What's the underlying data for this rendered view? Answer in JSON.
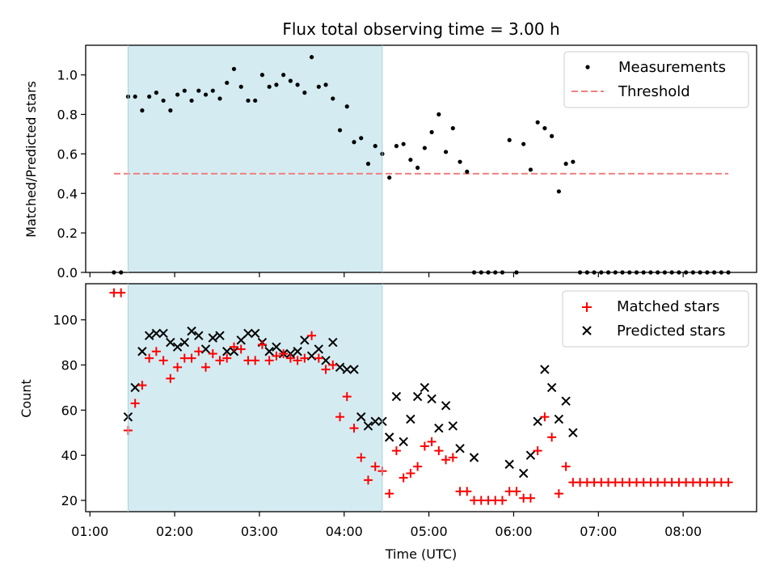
{
  "chart_data": [
    {
      "type": "scatter",
      "title": "Flux total observing time = 3.00 h",
      "xlabel": "",
      "ylabel": "Matched/Predicted stars",
      "ylim": [
        0,
        1.15
      ],
      "yticks": [
        "0.0",
        "0.2",
        "0.4",
        "0.6",
        "0.8",
        "1.0"
      ],
      "ytick_values": [
        0,
        0.2,
        0.4,
        0.6,
        0.8,
        1.0
      ],
      "shaded_span": [
        "01:27",
        "04:27"
      ],
      "shaded_color": "#d4ebf1",
      "legend_position": "top-right",
      "series": [
        {
          "name": "Measurements",
          "marker": "dot",
          "color": "#000000",
          "x": [
            "01:17",
            "01:22",
            "01:27",
            "01:32",
            "01:37",
            "01:42",
            "01:47",
            "01:52",
            "01:57",
            "02:02",
            "02:07",
            "02:12",
            "02:17",
            "02:22",
            "02:27",
            "02:32",
            "02:37",
            "02:42",
            "02:47",
            "02:52",
            "02:57",
            "03:02",
            "03:07",
            "03:12",
            "03:17",
            "03:22",
            "03:27",
            "03:32",
            "03:37",
            "03:42",
            "03:47",
            "03:52",
            "03:57",
            "04:02",
            "04:07",
            "04:12",
            "04:17",
            "04:22",
            "04:27",
            "04:32",
            "04:37",
            "04:42",
            "04:47",
            "04:52",
            "04:57",
            "05:02",
            "05:07",
            "05:12",
            "05:17",
            "05:22",
            "05:27",
            "05:32",
            "05:37",
            "05:42",
            "05:47",
            "05:52",
            "05:57",
            "06:02",
            "06:07",
            "06:12",
            "06:17",
            "06:22",
            "06:27",
            "06:32",
            "06:37",
            "06:42",
            "06:47",
            "06:52",
            "06:57",
            "07:02",
            "07:07",
            "07:12",
            "07:17",
            "07:22",
            "07:27",
            "07:32",
            "07:37",
            "07:42",
            "07:47",
            "07:52",
            "07:57",
            "08:02",
            "08:07",
            "08:12",
            "08:17",
            "08:22",
            "08:27",
            "08:32"
          ],
          "y": [
            0,
            0,
            0.89,
            0.89,
            0.82,
            0.89,
            0.91,
            0.87,
            0.82,
            0.9,
            0.92,
            0.87,
            0.92,
            0.9,
            0.92,
            0.88,
            0.96,
            1.03,
            0.94,
            0.87,
            0.87,
            1.0,
            0.94,
            0.95,
            1.0,
            0.97,
            0.95,
            0.91,
            1.09,
            0.94,
            0.95,
            0.88,
            0.72,
            0.84,
            0.66,
            0.68,
            0.55,
            0.64,
            0.6,
            0.48,
            0.64,
            0.65,
            0.57,
            0.53,
            0.63,
            0.71,
            0.8,
            0.61,
            0.73,
            0.56,
            0.51,
            0,
            0,
            0,
            0,
            0,
            0.67,
            0,
            0.65,
            0.52,
            0.76,
            0.73,
            0.69,
            0.41,
            0.55,
            0.56,
            0,
            0,
            0,
            0,
            0,
            0,
            0,
            0,
            0,
            0,
            0,
            0,
            0,
            0,
            0,
            0,
            0,
            0,
            0,
            0,
            0,
            0
          ]
        },
        {
          "name": "Threshold",
          "marker": "dashed-line",
          "color": "#f08080",
          "x": [
            "01:17",
            "08:32"
          ],
          "y": [
            0.5,
            0.5
          ]
        }
      ]
    },
    {
      "type": "scatter",
      "title": "",
      "xlabel": "Time (UTC)",
      "ylabel": "Count",
      "ylim": [
        15,
        116
      ],
      "yticks": [
        "20",
        "40",
        "60",
        "80",
        "100"
      ],
      "ytick_values": [
        20,
        40,
        60,
        80,
        100
      ],
      "xticks": [
        "01:00",
        "02:00",
        "03:00",
        "04:00",
        "05:00",
        "06:00",
        "07:00",
        "08:00"
      ],
      "xlim": [
        "00:57",
        "08:52"
      ],
      "shaded_span": [
        "01:27",
        "04:27"
      ],
      "shaded_color": "#d4ebf1",
      "legend_position": "top-right",
      "series": [
        {
          "name": "Matched stars",
          "marker": "plus",
          "color": "#ff0000",
          "x": [
            "01:17",
            "01:22",
            "01:27",
            "01:32",
            "01:37",
            "01:42",
            "01:47",
            "01:52",
            "01:57",
            "02:02",
            "02:07",
            "02:12",
            "02:17",
            "02:22",
            "02:27",
            "02:32",
            "02:37",
            "02:42",
            "02:47",
            "02:52",
            "02:57",
            "03:02",
            "03:07",
            "03:12",
            "03:17",
            "03:22",
            "03:27",
            "03:32",
            "03:37",
            "03:42",
            "03:47",
            "03:52",
            "03:57",
            "04:02",
            "04:07",
            "04:12",
            "04:17",
            "04:22",
            "04:27",
            "04:32",
            "04:37",
            "04:42",
            "04:47",
            "04:52",
            "04:57",
            "05:02",
            "05:07",
            "05:12",
            "05:17",
            "05:22",
            "05:27",
            "05:32",
            "05:37",
            "05:42",
            "05:47",
            "05:52",
            "05:57",
            "06:02",
            "06:07",
            "06:12",
            "06:17",
            "06:22",
            "06:27",
            "06:32",
            "06:37",
            "06:42",
            "06:47",
            "06:52",
            "06:57",
            "07:02",
            "07:07",
            "07:12",
            "07:17",
            "07:22",
            "07:27",
            "07:32",
            "07:37",
            "07:42",
            "07:47",
            "07:52",
            "07:57",
            "08:02",
            "08:07",
            "08:12",
            "08:17",
            "08:22",
            "08:27",
            "08:32"
          ],
          "y": [
            112,
            112,
            51,
            63,
            71,
            83,
            86,
            82,
            74,
            79,
            83,
            83,
            86,
            79,
            85,
            82,
            83,
            88,
            87,
            82,
            82,
            89,
            82,
            84,
            85,
            83,
            82,
            83,
            93,
            83,
            78,
            80,
            57,
            66,
            52,
            39,
            29,
            35,
            33,
            23,
            42,
            30,
            32,
            35,
            44,
            46,
            42,
            38,
            39,
            24,
            24,
            20,
            20,
            20,
            20,
            20,
            24,
            24,
            21,
            21,
            42,
            57,
            48,
            23,
            35,
            28,
            28,
            28,
            28,
            28,
            28,
            28,
            28,
            28,
            28,
            28,
            28,
            28,
            28,
            28,
            28,
            28,
            28,
            28,
            28,
            28,
            28,
            28
          ]
        },
        {
          "name": "Predicted stars",
          "marker": "x",
          "color": "#000000",
          "x": [
            "01:27",
            "01:32",
            "01:37",
            "01:42",
            "01:47",
            "01:52",
            "01:57",
            "02:02",
            "02:07",
            "02:12",
            "02:17",
            "02:22",
            "02:27",
            "02:32",
            "02:37",
            "02:42",
            "02:47",
            "02:52",
            "02:57",
            "03:02",
            "03:07",
            "03:12",
            "03:17",
            "03:22",
            "03:27",
            "03:32",
            "03:37",
            "03:42",
            "03:47",
            "03:52",
            "03:57",
            "04:02",
            "04:07",
            "04:12",
            "04:17",
            "04:22",
            "04:27",
            "04:32",
            "04:37",
            "04:42",
            "04:47",
            "04:52",
            "04:57",
            "05:02",
            "05:07",
            "05:12",
            "05:17",
            "05:22",
            "05:32",
            "05:57",
            "06:07",
            "06:12",
            "06:17",
            "06:22",
            "06:27",
            "06:32",
            "06:37",
            "06:42"
          ],
          "y": [
            57,
            70,
            86,
            93,
            94,
            94,
            90,
            88,
            90,
            95,
            93,
            87,
            92,
            93,
            86,
            86,
            91,
            94,
            94,
            90,
            86,
            88,
            85,
            85,
            86,
            91,
            84,
            87,
            82,
            90,
            79,
            78,
            78,
            57,
            53,
            55,
            55,
            48,
            66,
            46,
            56,
            66,
            70,
            65,
            52,
            62,
            53,
            43,
            39,
            36,
            32,
            40,
            55,
            78,
            70,
            56,
            64,
            50
          ]
        }
      ]
    }
  ]
}
